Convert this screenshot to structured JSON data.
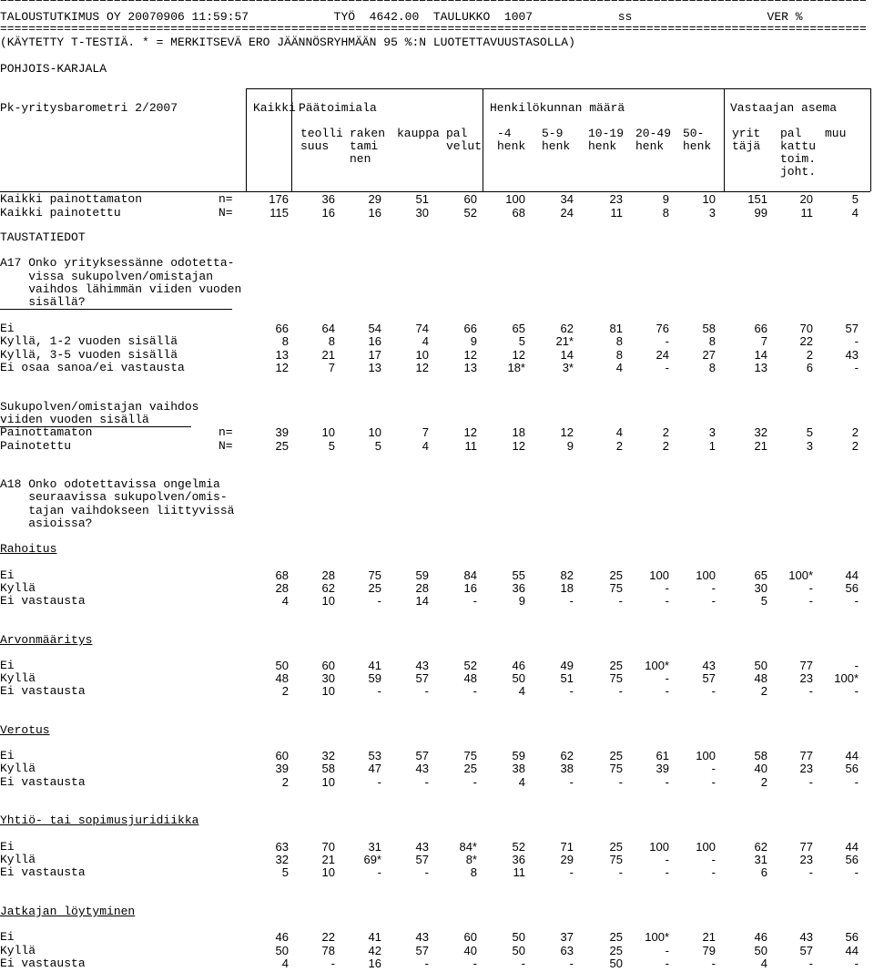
{
  "header": {
    "rule": "==========================================================================================================================",
    "title_line": "TALOUSTUTKIMUS OY 20070906 11:59:57            TYÖ  4642.00  TAULUKKO  1007            ss                   VER %",
    "note": "(KÄYTETTY T-TESTIÄ. * = MERKITSEVÄ ERO JÄÄNNÖSRYHMÄÄN 95 %:N LUOTETTAVUUSTASOLLA)",
    "region": "POHJOIS-KARJALA",
    "survey": "Pk-yritysbarometri 2/2007"
  },
  "groups": {
    "kaikki": "Kaikki",
    "paatoimiala": "Päätoimiala",
    "henkilokunta": "Henkilökunnan määrä",
    "vastaaja": "Vastaajan asema"
  },
  "columns": [
    [
      "teolli",
      "suus"
    ],
    [
      "raken",
      "tami",
      "nen"
    ],
    [
      "kauppa"
    ],
    [
      "pal",
      "velut"
    ],
    [
      "-4",
      "henk"
    ],
    [
      "5-9",
      "henk"
    ],
    [
      "10-19",
      "henk"
    ],
    [
      "20-49",
      "henk"
    ],
    [
      "50-",
      "henk"
    ],
    [
      "yrit",
      "täjä"
    ],
    [
      "pal",
      "kattu",
      "toim.",
      "joht."
    ],
    [
      "muu"
    ]
  ],
  "rows": [
    {
      "label": "Kaikki painottamaton",
      "mark": "n=",
      "values": [
        "176",
        "36",
        "29",
        "51",
        "60",
        "100",
        "34",
        "23",
        "9",
        "10",
        "151",
        "20",
        "5"
      ]
    },
    {
      "label": "Kaikki painotettu",
      "mark": "N=",
      "values": [
        "115",
        "16",
        "16",
        "30",
        "52",
        "68",
        "24",
        "11",
        "8",
        "3",
        "99",
        "11",
        "4"
      ]
    },
    {
      "text": "TAUSTATIEDOT"
    },
    {
      "text": "A17 Onko yrityksessänne odotetta-"
    },
    {
      "text": "    vissa sukupolven/omistajan"
    },
    {
      "text": "    vaihdos lähimmän viiden vuoden"
    },
    {
      "text": "    sisällä?",
      "underline_to": 255
    },
    {
      "label": "Ei",
      "values": [
        "66",
        "64",
        "54",
        "74",
        "66",
        "65",
        "62",
        "81",
        "76",
        "58",
        "66",
        "70",
        "57"
      ]
    },
    {
      "label": "Kyllä, 1-2 vuoden sisällä",
      "values": [
        "8",
        "8",
        "16",
        "4",
        "9",
        "5",
        "21*",
        "8",
        "-",
        "8",
        "7",
        "22",
        "-"
      ]
    },
    {
      "label": "Kyllä, 3-5 vuoden sisällä",
      "values": [
        "13",
        "21",
        "17",
        "10",
        "12",
        "12",
        "14",
        "8",
        "24",
        "27",
        "14",
        "2",
        "43"
      ]
    },
    {
      "label": "Ei osaa sanoa/ei vastausta",
      "values": [
        "12",
        "7",
        "13",
        "12",
        "13",
        "18*",
        "3*",
        "4",
        "-",
        "8",
        "13",
        "6",
        "-"
      ]
    },
    {
      "text": "Sukupolven/omistajan vaihdos"
    },
    {
      "text": "viiden vuoden sisällä",
      "underline_to": 210
    },
    {
      "label": "Painottamaton",
      "mark": "n=",
      "values": [
        "39",
        "10",
        "10",
        "7",
        "12",
        "18",
        "12",
        "4",
        "2",
        "3",
        "32",
        "5",
        "2"
      ]
    },
    {
      "label": "Painotettu",
      "mark": "N=",
      "values": [
        "25",
        "5",
        "5",
        "4",
        "11",
        "12",
        "9",
        "2",
        "2",
        "1",
        "21",
        "3",
        "2"
      ]
    },
    {
      "text": "A18 Onko odotettavissa ongelmia"
    },
    {
      "text": "    seuraavissa sukupolven/omis-"
    },
    {
      "text": "    tajan vaihdokseen liittyvissä"
    },
    {
      "text": "    asioissa?"
    },
    {
      "text": "Rahoitus",
      "underline": true
    },
    {
      "label": "Ei",
      "values": [
        "68",
        "28",
        "75",
        "59",
        "84",
        "55",
        "82",
        "25",
        "100",
        "100",
        "65",
        "100*",
        "44"
      ]
    },
    {
      "label": "Kyllä",
      "values": [
        "28",
        "62",
        "25",
        "28",
        "16",
        "36",
        "18",
        "75",
        "-",
        "-",
        "30",
        "-",
        "56"
      ]
    },
    {
      "label": "Ei vastausta",
      "values": [
        "4",
        "10",
        "-",
        "14",
        "-",
        "9",
        "-",
        "-",
        "-",
        "-",
        "5",
        "-",
        "-"
      ]
    },
    {
      "text": "Arvonmääritys",
      "underline": true
    },
    {
      "label": "Ei",
      "values": [
        "50",
        "60",
        "41",
        "43",
        "52",
        "46",
        "49",
        "25",
        "100*",
        "43",
        "50",
        "77",
        "-"
      ]
    },
    {
      "label": "Kyllä",
      "values": [
        "48",
        "30",
        "59",
        "57",
        "48",
        "50",
        "51",
        "75",
        "-",
        "57",
        "48",
        "23",
        "100*"
      ]
    },
    {
      "label": "Ei vastausta",
      "values": [
        "2",
        "10",
        "-",
        "-",
        "-",
        "4",
        "-",
        "-",
        "-",
        "-",
        "2",
        "-",
        "-"
      ]
    },
    {
      "text": "Verotus",
      "underline": true
    },
    {
      "label": "Ei",
      "values": [
        "60",
        "32",
        "53",
        "57",
        "75",
        "59",
        "62",
        "25",
        "61",
        "100",
        "58",
        "77",
        "44"
      ]
    },
    {
      "label": "Kyllä",
      "values": [
        "39",
        "58",
        "47",
        "43",
        "25",
        "38",
        "38",
        "75",
        "39",
        "-",
        "40",
        "23",
        "56"
      ]
    },
    {
      "label": "Ei vastausta",
      "values": [
        "2",
        "10",
        "-",
        "-",
        "-",
        "4",
        "-",
        "-",
        "-",
        "-",
        "2",
        "-",
        "-"
      ]
    },
    {
      "text": "Yhtiö- tai sopimusjuridiikka",
      "underline": true
    },
    {
      "label": "Ei",
      "values": [
        "63",
        "70",
        "31",
        "43",
        "84*",
        "52",
        "71",
        "25",
        "100",
        "100",
        "62",
        "77",
        "44"
      ]
    },
    {
      "label": "Kyllä",
      "values": [
        "32",
        "21",
        "69*",
        "57",
        "8*",
        "36",
        "29",
        "75",
        "-",
        "-",
        "31",
        "23",
        "56"
      ]
    },
    {
      "label": "Ei vastausta",
      "values": [
        "5",
        "10",
        "-",
        "-",
        "8",
        "11",
        "-",
        "-",
        "-",
        "-",
        "6",
        "-",
        "-"
      ]
    },
    {
      "text": "Jatkajan löytyminen",
      "underline": true
    },
    {
      "label": "Ei",
      "values": [
        "46",
        "22",
        "41",
        "43",
        "60",
        "50",
        "37",
        "25",
        "100*",
        "21",
        "46",
        "43",
        "56"
      ]
    },
    {
      "label": "Kyllä",
      "values": [
        "50",
        "78",
        "42",
        "57",
        "40",
        "50",
        "63",
        "25",
        "-",
        "79",
        "50",
        "57",
        "44"
      ]
    },
    {
      "label": "Ei vastausta",
      "values": [
        "4",
        "-",
        "16",
        "-",
        "-",
        "-",
        "-",
        "50",
        "-",
        "-",
        "4",
        "-",
        "-"
      ]
    }
  ]
}
